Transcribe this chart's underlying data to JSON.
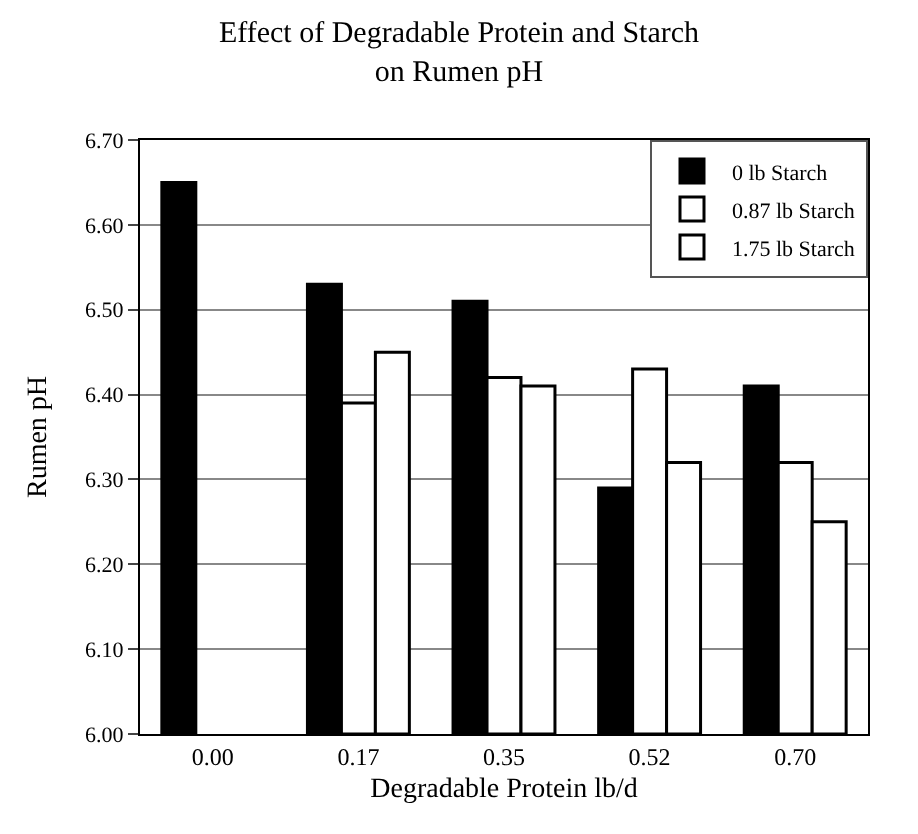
{
  "chart_data": {
    "type": "bar",
    "title": "Effect of Degradable Protein and Starch\non Rumen pH",
    "xlabel": "Degradable Protein lb/d",
    "ylabel": "Rumen pH",
    "categories": [
      "0.00",
      "0.17",
      "0.35",
      "0.52",
      "0.70"
    ],
    "series": [
      {
        "name": "0 lb Starch",
        "color": "#000000",
        "values": [
          6.65,
          6.53,
          6.51,
          6.29,
          6.41
        ]
      },
      {
        "name": "0.87 lb Starch",
        "color": "#ffffff",
        "values": [
          null,
          6.39,
          6.42,
          6.43,
          6.32
        ]
      },
      {
        "name": "1.75 lb Starch",
        "color": "#ffffff",
        "values": [
          null,
          6.45,
          6.41,
          6.32,
          6.25
        ]
      }
    ],
    "ylim": [
      6.0,
      6.7
    ],
    "yticks": [
      {
        "value": 6.0,
        "label": "6.00"
      },
      {
        "value": 6.1,
        "label": "6.10"
      },
      {
        "value": 6.2,
        "label": "6.20"
      },
      {
        "value": 6.3,
        "label": "6.30"
      },
      {
        "value": 6.4,
        "label": "6.40"
      },
      {
        "value": 6.5,
        "label": "6.50"
      },
      {
        "value": 6.6,
        "label": "6.60"
      },
      {
        "value": 6.7,
        "label": "6.70"
      }
    ],
    "grid": "y",
    "legend": "top right"
  }
}
